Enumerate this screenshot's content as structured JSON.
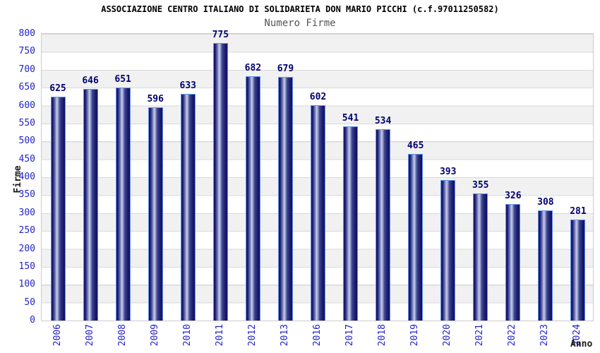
{
  "chart_data": {
    "type": "bar",
    "title": "ASSOCIAZIONE CENTRO ITALIANO DI SOLIDARIETA DON MARIO PICCHI (c.f.97011250582)",
    "subtitle": "Numero Firme",
    "xlabel": "Anno",
    "ylabel": "Firme",
    "categories": [
      "2006",
      "2007",
      "2008",
      "2009",
      "2010",
      "2011",
      "2012",
      "2013",
      "2016",
      "2017",
      "2018",
      "2019",
      "2020",
      "2021",
      "2022",
      "2023",
      "2024"
    ],
    "values": [
      625,
      646,
      651,
      596,
      633,
      775,
      682,
      679,
      602,
      541,
      534,
      465,
      393,
      355,
      326,
      308,
      281
    ],
    "ylim": [
      0,
      800
    ],
    "ytick_step": 50,
    "grid": "horizontal-bands",
    "legend": "none",
    "colors": {
      "tick_label": "#2323cc",
      "value_label": "#00006e",
      "title": "#000000",
      "subtitle": "#555555",
      "axis_title": "#1a1a1a",
      "bar_dark": "#10105e",
      "bar_light": "#c9cfe9",
      "bar_border": "#5f93e8",
      "grid_line": "#d9d9d9",
      "band_fill": "#f1f1f1",
      "plot_border": "#cccccc"
    }
  }
}
